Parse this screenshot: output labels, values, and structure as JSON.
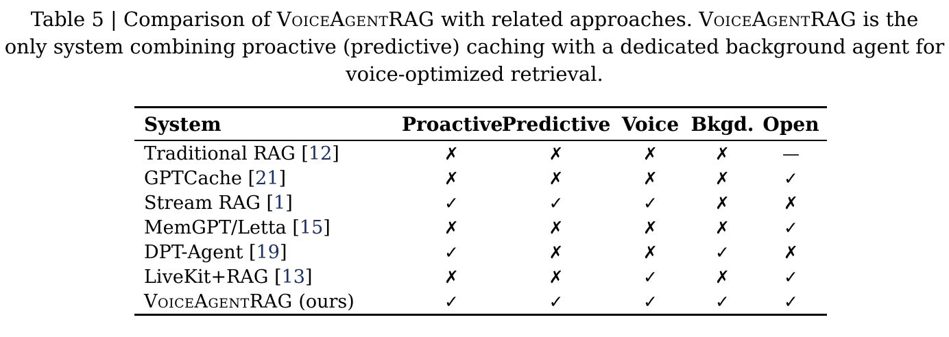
{
  "caption": {
    "lines": [
      [
        {
          "t": "Table 5 | Comparison of ",
          "sc": false
        },
        {
          "t": "VoiceAgentRAG",
          "sc": true
        },
        {
          "t": " with related approaches. ",
          "sc": false
        },
        {
          "t": "VoiceAgentRAG",
          "sc": true
        },
        {
          "t": " is the",
          "sc": false
        }
      ],
      [
        {
          "t": "only system combining proactive (predictive) caching with a dedicated background agent for",
          "sc": false
        }
      ],
      [
        {
          "t": "voice-optimized retrieval.",
          "sc": false
        }
      ]
    ]
  },
  "table": {
    "columns": [
      "System",
      "Proactive",
      "Predictive",
      "Voice",
      "Bkgd.",
      "Open"
    ],
    "symbols": {
      "check": "✓",
      "cross": "✗",
      "dash": "—"
    },
    "rows": [
      {
        "system": {
          "name": "Traditional RAG",
          "sc": false,
          "cite": "12",
          "suffix": ""
        },
        "cells": [
          "cross",
          "cross",
          "cross",
          "cross",
          "dash"
        ]
      },
      {
        "system": {
          "name": "GPTCache",
          "sc": false,
          "cite": "21",
          "suffix": ""
        },
        "cells": [
          "cross",
          "cross",
          "cross",
          "cross",
          "check"
        ]
      },
      {
        "system": {
          "name": "Stream RAG",
          "sc": false,
          "cite": "1",
          "suffix": ""
        },
        "cells": [
          "check",
          "check",
          "check",
          "cross",
          "cross"
        ]
      },
      {
        "system": {
          "name": "MemGPT/Letta",
          "sc": false,
          "cite": "15",
          "suffix": ""
        },
        "cells": [
          "cross",
          "cross",
          "cross",
          "cross",
          "check"
        ]
      },
      {
        "system": {
          "name": "DPT-Agent",
          "sc": false,
          "cite": "19",
          "suffix": ""
        },
        "cells": [
          "check",
          "cross",
          "cross",
          "check",
          "cross"
        ]
      },
      {
        "system": {
          "name": "LiveKit+RAG",
          "sc": false,
          "cite": "13",
          "suffix": ""
        },
        "cells": [
          "cross",
          "cross",
          "check",
          "cross",
          "check"
        ]
      },
      {
        "system": {
          "name": "VoiceAgentRAG",
          "sc": true,
          "cite": "",
          "suffix": " (ours)"
        },
        "cells": [
          "check",
          "check",
          "check",
          "check",
          "check"
        ]
      }
    ]
  },
  "colors": {
    "background": "#ffffff",
    "text": "#000000",
    "citation_link": "#1b2f6b",
    "rule": "#000000"
  }
}
